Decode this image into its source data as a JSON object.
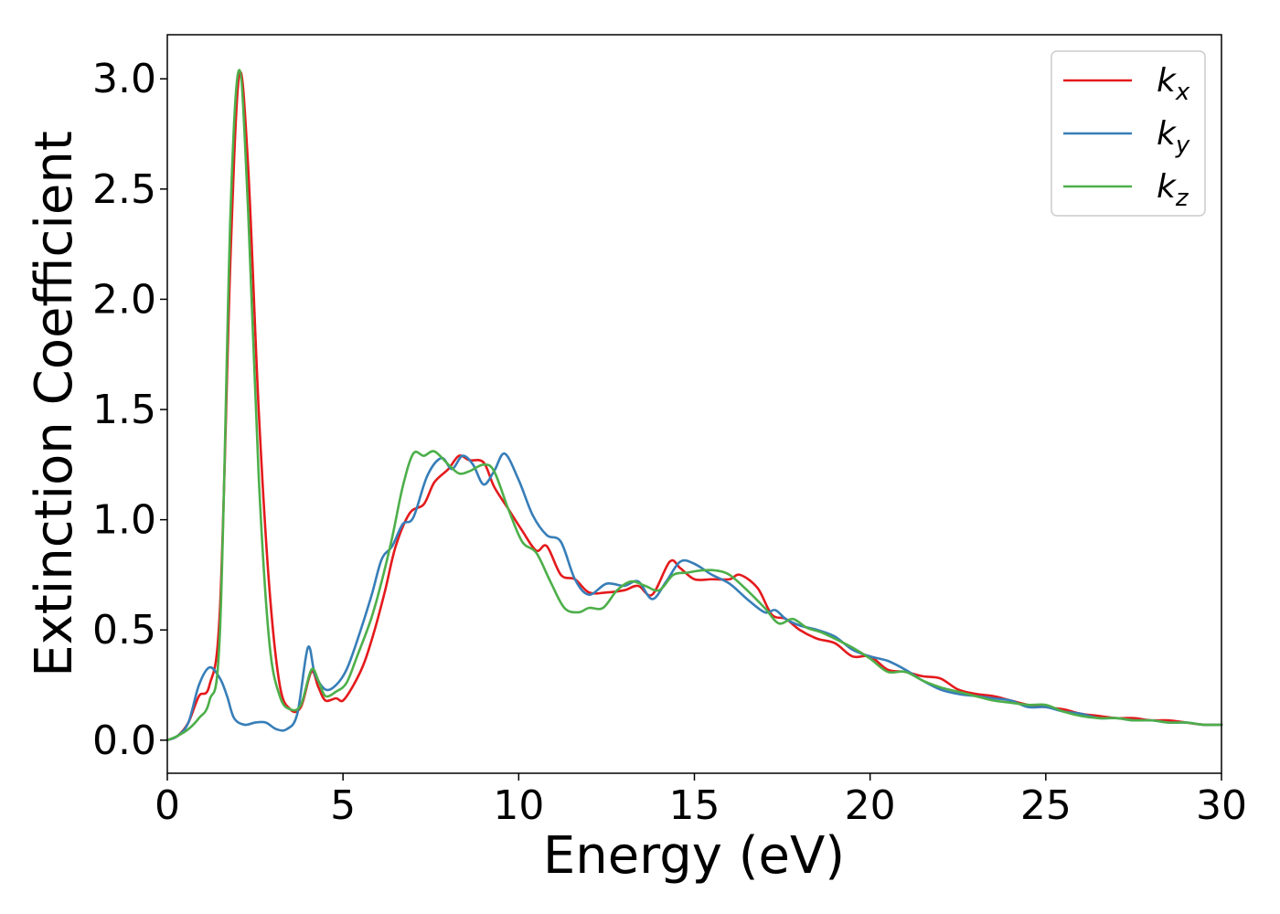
{
  "chart_data": {
    "type": "line",
    "xlabel": "Energy (eV)",
    "ylabel": "Extinction Coefficient",
    "xlim": [
      0,
      30
    ],
    "ylim": [
      -0.15,
      3.2
    ],
    "xticks": [
      0,
      5,
      10,
      15,
      20,
      25,
      30
    ],
    "xtick_labels": [
      "0",
      "5",
      "10",
      "15",
      "20",
      "25",
      "30"
    ],
    "yticks": [
      0.0,
      0.5,
      1.0,
      1.5,
      2.0,
      2.5,
      3.0
    ],
    "ytick_labels": [
      "0.0",
      "0.5",
      "1.0",
      "1.5",
      "2.0",
      "2.5",
      "3.0"
    ],
    "grid": false,
    "legend_position": "top-right",
    "series": [
      {
        "name": "kx",
        "label_base": "k",
        "label_sub": "x",
        "color": "#e41a1c",
        "points": [
          [
            0,
            0
          ],
          [
            0.3,
            0.02
          ],
          [
            0.6,
            0.08
          ],
          [
            0.9,
            0.2
          ],
          [
            1.2,
            0.25
          ],
          [
            1.5,
            0.6
          ],
          [
            1.8,
            2.2
          ],
          [
            2.05,
            3.02
          ],
          [
            2.3,
            2.6
          ],
          [
            2.6,
            1.5
          ],
          [
            2.9,
            0.7
          ],
          [
            3.2,
            0.25
          ],
          [
            3.5,
            0.14
          ],
          [
            3.8,
            0.15
          ],
          [
            4.1,
            0.31
          ],
          [
            4.3,
            0.24
          ],
          [
            4.5,
            0.18
          ],
          [
            4.8,
            0.19
          ],
          [
            5.0,
            0.18
          ],
          [
            5.3,
            0.25
          ],
          [
            5.6,
            0.35
          ],
          [
            5.9,
            0.5
          ],
          [
            6.2,
            0.68
          ],
          [
            6.5,
            0.88
          ],
          [
            6.9,
            1.03
          ],
          [
            7.3,
            1.07
          ],
          [
            7.6,
            1.17
          ],
          [
            8.0,
            1.23
          ],
          [
            8.3,
            1.29
          ],
          [
            8.6,
            1.27
          ],
          [
            9.0,
            1.26
          ],
          [
            9.3,
            1.15
          ],
          [
            9.7,
            1.05
          ],
          [
            10.1,
            0.95
          ],
          [
            10.5,
            0.86
          ],
          [
            10.8,
            0.88
          ],
          [
            11.2,
            0.75
          ],
          [
            11.6,
            0.73
          ],
          [
            12.0,
            0.67
          ],
          [
            12.5,
            0.67
          ],
          [
            13.0,
            0.68
          ],
          [
            13.4,
            0.7
          ],
          [
            13.8,
            0.66
          ],
          [
            14.3,
            0.81
          ],
          [
            14.6,
            0.78
          ],
          [
            15.0,
            0.73
          ],
          [
            15.5,
            0.73
          ],
          [
            16.0,
            0.73
          ],
          [
            16.3,
            0.75
          ],
          [
            16.8,
            0.69
          ],
          [
            17.2,
            0.57
          ],
          [
            17.6,
            0.55
          ],
          [
            18.0,
            0.5
          ],
          [
            18.5,
            0.46
          ],
          [
            19.0,
            0.44
          ],
          [
            19.5,
            0.38
          ],
          [
            20.0,
            0.38
          ],
          [
            20.5,
            0.32
          ],
          [
            21.0,
            0.31
          ],
          [
            21.5,
            0.29
          ],
          [
            22.0,
            0.28
          ],
          [
            22.5,
            0.23
          ],
          [
            23.0,
            0.21
          ],
          [
            23.5,
            0.2
          ],
          [
            24.0,
            0.18
          ],
          [
            24.5,
            0.16
          ],
          [
            25.0,
            0.15
          ],
          [
            25.5,
            0.14
          ],
          [
            26.0,
            0.12
          ],
          [
            26.5,
            0.11
          ],
          [
            27.0,
            0.1
          ],
          [
            27.5,
            0.1
          ],
          [
            28.0,
            0.09
          ],
          [
            28.5,
            0.09
          ],
          [
            29.0,
            0.08
          ],
          [
            29.5,
            0.07
          ],
          [
            30.0,
            0.07
          ]
        ]
      },
      {
        "name": "ky",
        "label_base": "k",
        "label_sub": "y",
        "color": "#377eb8",
        "points": [
          [
            0,
            0
          ],
          [
            0.3,
            0.02
          ],
          [
            0.6,
            0.08
          ],
          [
            0.9,
            0.25
          ],
          [
            1.2,
            0.33
          ],
          [
            1.5,
            0.28
          ],
          [
            1.7,
            0.2
          ],
          [
            1.9,
            0.1
          ],
          [
            2.2,
            0.07
          ],
          [
            2.5,
            0.08
          ],
          [
            2.8,
            0.08
          ],
          [
            3.1,
            0.05
          ],
          [
            3.4,
            0.05
          ],
          [
            3.7,
            0.12
          ],
          [
            4.0,
            0.42
          ],
          [
            4.2,
            0.3
          ],
          [
            4.5,
            0.23
          ],
          [
            4.8,
            0.25
          ],
          [
            5.1,
            0.32
          ],
          [
            5.4,
            0.45
          ],
          [
            5.8,
            0.65
          ],
          [
            6.1,
            0.82
          ],
          [
            6.4,
            0.88
          ],
          [
            6.7,
            0.98
          ],
          [
            7.0,
            1.01
          ],
          [
            7.4,
            1.2
          ],
          [
            7.8,
            1.28
          ],
          [
            8.1,
            1.23
          ],
          [
            8.4,
            1.29
          ],
          [
            8.7,
            1.25
          ],
          [
            9.0,
            1.16
          ],
          [
            9.3,
            1.22
          ],
          [
            9.6,
            1.3
          ],
          [
            10.0,
            1.18
          ],
          [
            10.4,
            1.02
          ],
          [
            10.8,
            0.93
          ],
          [
            11.2,
            0.9
          ],
          [
            11.6,
            0.73
          ],
          [
            12.0,
            0.66
          ],
          [
            12.5,
            0.71
          ],
          [
            13.0,
            0.7
          ],
          [
            13.4,
            0.72
          ],
          [
            13.8,
            0.64
          ],
          [
            14.2,
            0.72
          ],
          [
            14.6,
            0.81
          ],
          [
            15.0,
            0.8
          ],
          [
            15.5,
            0.75
          ],
          [
            16.0,
            0.71
          ],
          [
            16.5,
            0.64
          ],
          [
            17.0,
            0.58
          ],
          [
            17.3,
            0.59
          ],
          [
            17.6,
            0.55
          ],
          [
            18.0,
            0.52
          ],
          [
            18.5,
            0.5
          ],
          [
            19.0,
            0.47
          ],
          [
            19.5,
            0.41
          ],
          [
            20.0,
            0.38
          ],
          [
            20.5,
            0.36
          ],
          [
            21.0,
            0.32
          ],
          [
            21.5,
            0.27
          ],
          [
            22.0,
            0.23
          ],
          [
            22.5,
            0.21
          ],
          [
            23.0,
            0.2
          ],
          [
            23.5,
            0.19
          ],
          [
            24.0,
            0.18
          ],
          [
            24.5,
            0.15
          ],
          [
            25.0,
            0.15
          ],
          [
            25.5,
            0.13
          ],
          [
            26.0,
            0.12
          ],
          [
            26.5,
            0.1
          ],
          [
            27.0,
            0.1
          ],
          [
            27.5,
            0.09
          ],
          [
            28.0,
            0.09
          ],
          [
            28.5,
            0.08
          ],
          [
            29.0,
            0.08
          ],
          [
            29.5,
            0.07
          ],
          [
            30.0,
            0.07
          ]
        ]
      },
      {
        "name": "kz",
        "label_base": "k",
        "label_sub": "z",
        "color": "#4daf4a",
        "points": [
          [
            0,
            0
          ],
          [
            0.3,
            0.02
          ],
          [
            0.6,
            0.05
          ],
          [
            0.9,
            0.1
          ],
          [
            1.2,
            0.18
          ],
          [
            1.5,
            0.5
          ],
          [
            1.8,
            2.4
          ],
          [
            2.05,
            3.04
          ],
          [
            2.3,
            2.4
          ],
          [
            2.6,
            1.2
          ],
          [
            2.9,
            0.45
          ],
          [
            3.2,
            0.2
          ],
          [
            3.5,
            0.14
          ],
          [
            3.8,
            0.16
          ],
          [
            4.1,
            0.32
          ],
          [
            4.3,
            0.27
          ],
          [
            4.5,
            0.2
          ],
          [
            4.8,
            0.22
          ],
          [
            5.1,
            0.26
          ],
          [
            5.4,
            0.38
          ],
          [
            5.8,
            0.55
          ],
          [
            6.1,
            0.72
          ],
          [
            6.4,
            0.92
          ],
          [
            6.7,
            1.15
          ],
          [
            7.0,
            1.3
          ],
          [
            7.3,
            1.29
          ],
          [
            7.6,
            1.31
          ],
          [
            8.0,
            1.25
          ],
          [
            8.3,
            1.21
          ],
          [
            8.6,
            1.22
          ],
          [
            9.0,
            1.25
          ],
          [
            9.3,
            1.22
          ],
          [
            9.7,
            1.05
          ],
          [
            10.1,
            0.9
          ],
          [
            10.5,
            0.85
          ],
          [
            10.9,
            0.72
          ],
          [
            11.3,
            0.6
          ],
          [
            11.7,
            0.58
          ],
          [
            12.0,
            0.6
          ],
          [
            12.4,
            0.6
          ],
          [
            12.8,
            0.68
          ],
          [
            13.2,
            0.72
          ],
          [
            13.6,
            0.7
          ],
          [
            14.0,
            0.68
          ],
          [
            14.4,
            0.75
          ],
          [
            14.8,
            0.76
          ],
          [
            15.2,
            0.77
          ],
          [
            15.6,
            0.77
          ],
          [
            16.0,
            0.75
          ],
          [
            16.5,
            0.68
          ],
          [
            17.0,
            0.6
          ],
          [
            17.4,
            0.53
          ],
          [
            17.8,
            0.55
          ],
          [
            18.2,
            0.51
          ],
          [
            18.6,
            0.49
          ],
          [
            19.0,
            0.46
          ],
          [
            19.5,
            0.42
          ],
          [
            20.0,
            0.37
          ],
          [
            20.5,
            0.31
          ],
          [
            21.0,
            0.31
          ],
          [
            21.5,
            0.27
          ],
          [
            22.0,
            0.24
          ],
          [
            22.5,
            0.22
          ],
          [
            23.0,
            0.2
          ],
          [
            23.5,
            0.18
          ],
          [
            24.0,
            0.17
          ],
          [
            24.5,
            0.16
          ],
          [
            25.0,
            0.16
          ],
          [
            25.5,
            0.13
          ],
          [
            26.0,
            0.11
          ],
          [
            26.5,
            0.1
          ],
          [
            27.0,
            0.1
          ],
          [
            27.5,
            0.09
          ],
          [
            28.0,
            0.09
          ],
          [
            28.5,
            0.08
          ],
          [
            29.0,
            0.08
          ],
          [
            29.5,
            0.07
          ],
          [
            30.0,
            0.07
          ]
        ]
      }
    ]
  }
}
